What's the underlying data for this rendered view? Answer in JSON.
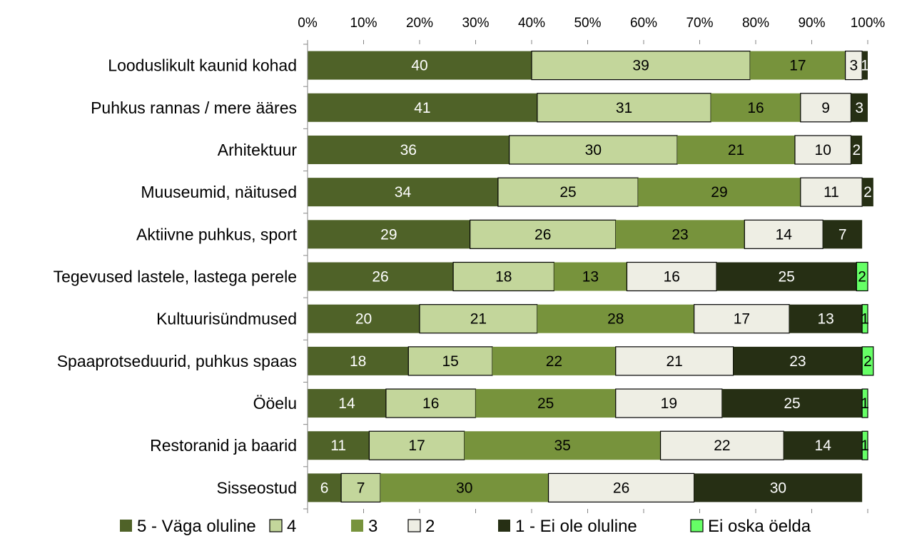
{
  "chart_data": {
    "type": "bar",
    "orientation": "horizontal",
    "stacked": true,
    "percent_stacked": true,
    "title": "",
    "xlabel": "",
    "ylabel": "",
    "xlim": [
      0,
      100
    ],
    "x_ticks": [
      "0%",
      "10%",
      "20%",
      "30%",
      "40%",
      "50%",
      "60%",
      "70%",
      "80%",
      "90%",
      "100%"
    ],
    "x_axis_position": "top",
    "grid": false,
    "legend_position": "bottom",
    "categories": [
      "Looduslikult kaunid kohad",
      "Puhkus rannas / mere ääres",
      "Arhitektuur",
      "Muuseumid, näitused",
      "Aktiivne puhkus, sport",
      "Tegevused lastele, lastega perele",
      "Kultuurisündmused",
      "Spaaprotseduurid, puhkus spaas",
      "Ööelu",
      "Restoranid ja baarid",
      "Sisseostud"
    ],
    "series": [
      {
        "name": "5 - Väga oluline",
        "color": "#4f6228",
        "label_color": "#ffffff",
        "border": false,
        "values": [
          40,
          41,
          36,
          34,
          29,
          26,
          20,
          18,
          14,
          11,
          6
        ]
      },
      {
        "name": "4",
        "color": "#c3d69b",
        "label_color": "#000000",
        "border": true,
        "values": [
          39,
          31,
          30,
          25,
          26,
          18,
          21,
          15,
          16,
          17,
          7
        ]
      },
      {
        "name": "3",
        "color": "#77933c",
        "label_color": "#000000",
        "border": false,
        "values": [
          17,
          16,
          21,
          29,
          23,
          13,
          28,
          22,
          25,
          35,
          30
        ]
      },
      {
        "name": "2",
        "color": "#eeeee4",
        "label_color": "#000000",
        "border": true,
        "values": [
          3,
          9,
          10,
          11,
          14,
          16,
          17,
          21,
          19,
          22,
          26
        ]
      },
      {
        "name": "1 - Ei ole oluline",
        "color": "#262f14",
        "label_color": "#ffffff",
        "border": false,
        "values": [
          1,
          3,
          2,
          2,
          7,
          25,
          13,
          23,
          25,
          14,
          30
        ]
      },
      {
        "name": "Ei oska öelda",
        "color": "#66ff66",
        "label_color": "#000000",
        "border": true,
        "values": [
          0,
          0,
          0,
          0,
          0,
          2,
          1,
          2,
          1,
          1,
          0
        ]
      }
    ]
  }
}
